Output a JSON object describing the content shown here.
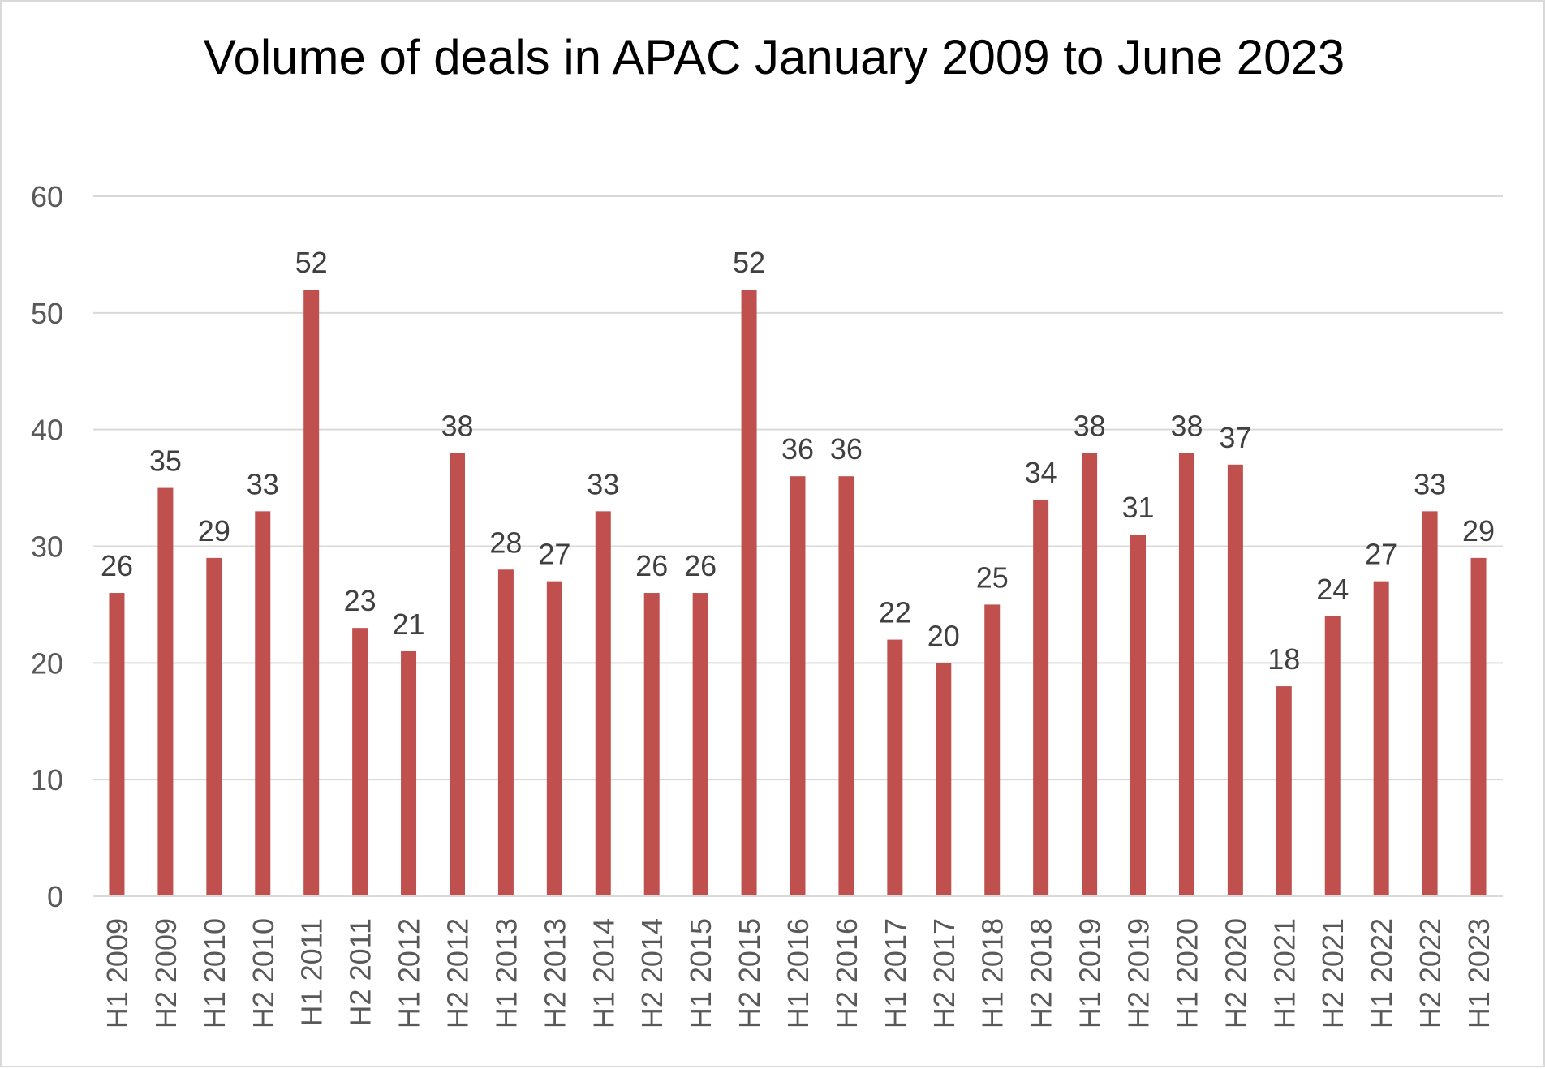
{
  "chart_data": {
    "type": "bar",
    "title": "Volume of deals in APAC January 2009 to June 2023",
    "xlabel": "",
    "ylabel": "",
    "ylim": [
      0,
      60
    ],
    "yticks": [
      0,
      10,
      20,
      30,
      40,
      50,
      60
    ],
    "grid": true,
    "legend": "none",
    "data_labels": true,
    "bar_color": "#c0504d",
    "categories": [
      "H1 2009",
      "H2 2009",
      "H1 2010",
      "H2 2010",
      "H1 2011",
      "H2 2011",
      "H1 2012",
      "H2 2012",
      "H1 2013",
      "H2 2013",
      "H1 2014",
      "H2 2014",
      "H1 2015",
      "H2 2015",
      "H1 2016",
      "H2 2016",
      "H1 2017",
      "H2 2017",
      "H1 2018",
      "H2 2018",
      "H1 2019",
      "H2 2019",
      "H1 2020",
      "H2 2020",
      "H1 2021",
      "H2 2021",
      "H1 2022",
      "H2 2022",
      "H1 2023"
    ],
    "values": [
      26,
      35,
      29,
      33,
      52,
      23,
      21,
      38,
      28,
      27,
      33,
      26,
      26,
      52,
      36,
      36,
      22,
      20,
      25,
      34,
      38,
      31,
      38,
      37,
      18,
      24,
      27,
      33,
      29
    ]
  }
}
